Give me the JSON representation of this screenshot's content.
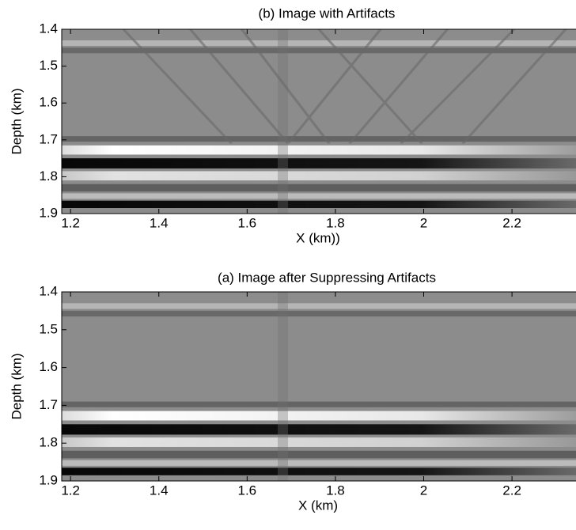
{
  "chart_data": [
    {
      "type": "image",
      "title": "(b) Image with Artifacts",
      "x_label": "X (km))",
      "y_label": "Depth (km)",
      "xlim": [
        1.18,
        2.345
      ],
      "ylim": [
        1.4,
        1.9
      ],
      "xticks": [
        1.2,
        1.4,
        1.6,
        1.8,
        2,
        2.2
      ],
      "yticks": [
        1.4,
        1.5,
        1.6,
        1.7,
        1.8,
        1.9
      ],
      "y_inverted": true
    },
    {
      "type": "image",
      "title": "(a) Image after Suppressing Artifacts",
      "x_label": "X (km)",
      "y_label": "Depth (km)",
      "xlim": [
        1.18,
        2.345
      ],
      "ylim": [
        1.4,
        1.9
      ],
      "xticks": [
        1.2,
        1.4,
        1.6,
        1.8,
        2,
        2.2
      ],
      "yticks": [
        1.4,
        1.5,
        1.6,
        1.7,
        1.8,
        1.9
      ],
      "y_inverted": true
    }
  ]
}
